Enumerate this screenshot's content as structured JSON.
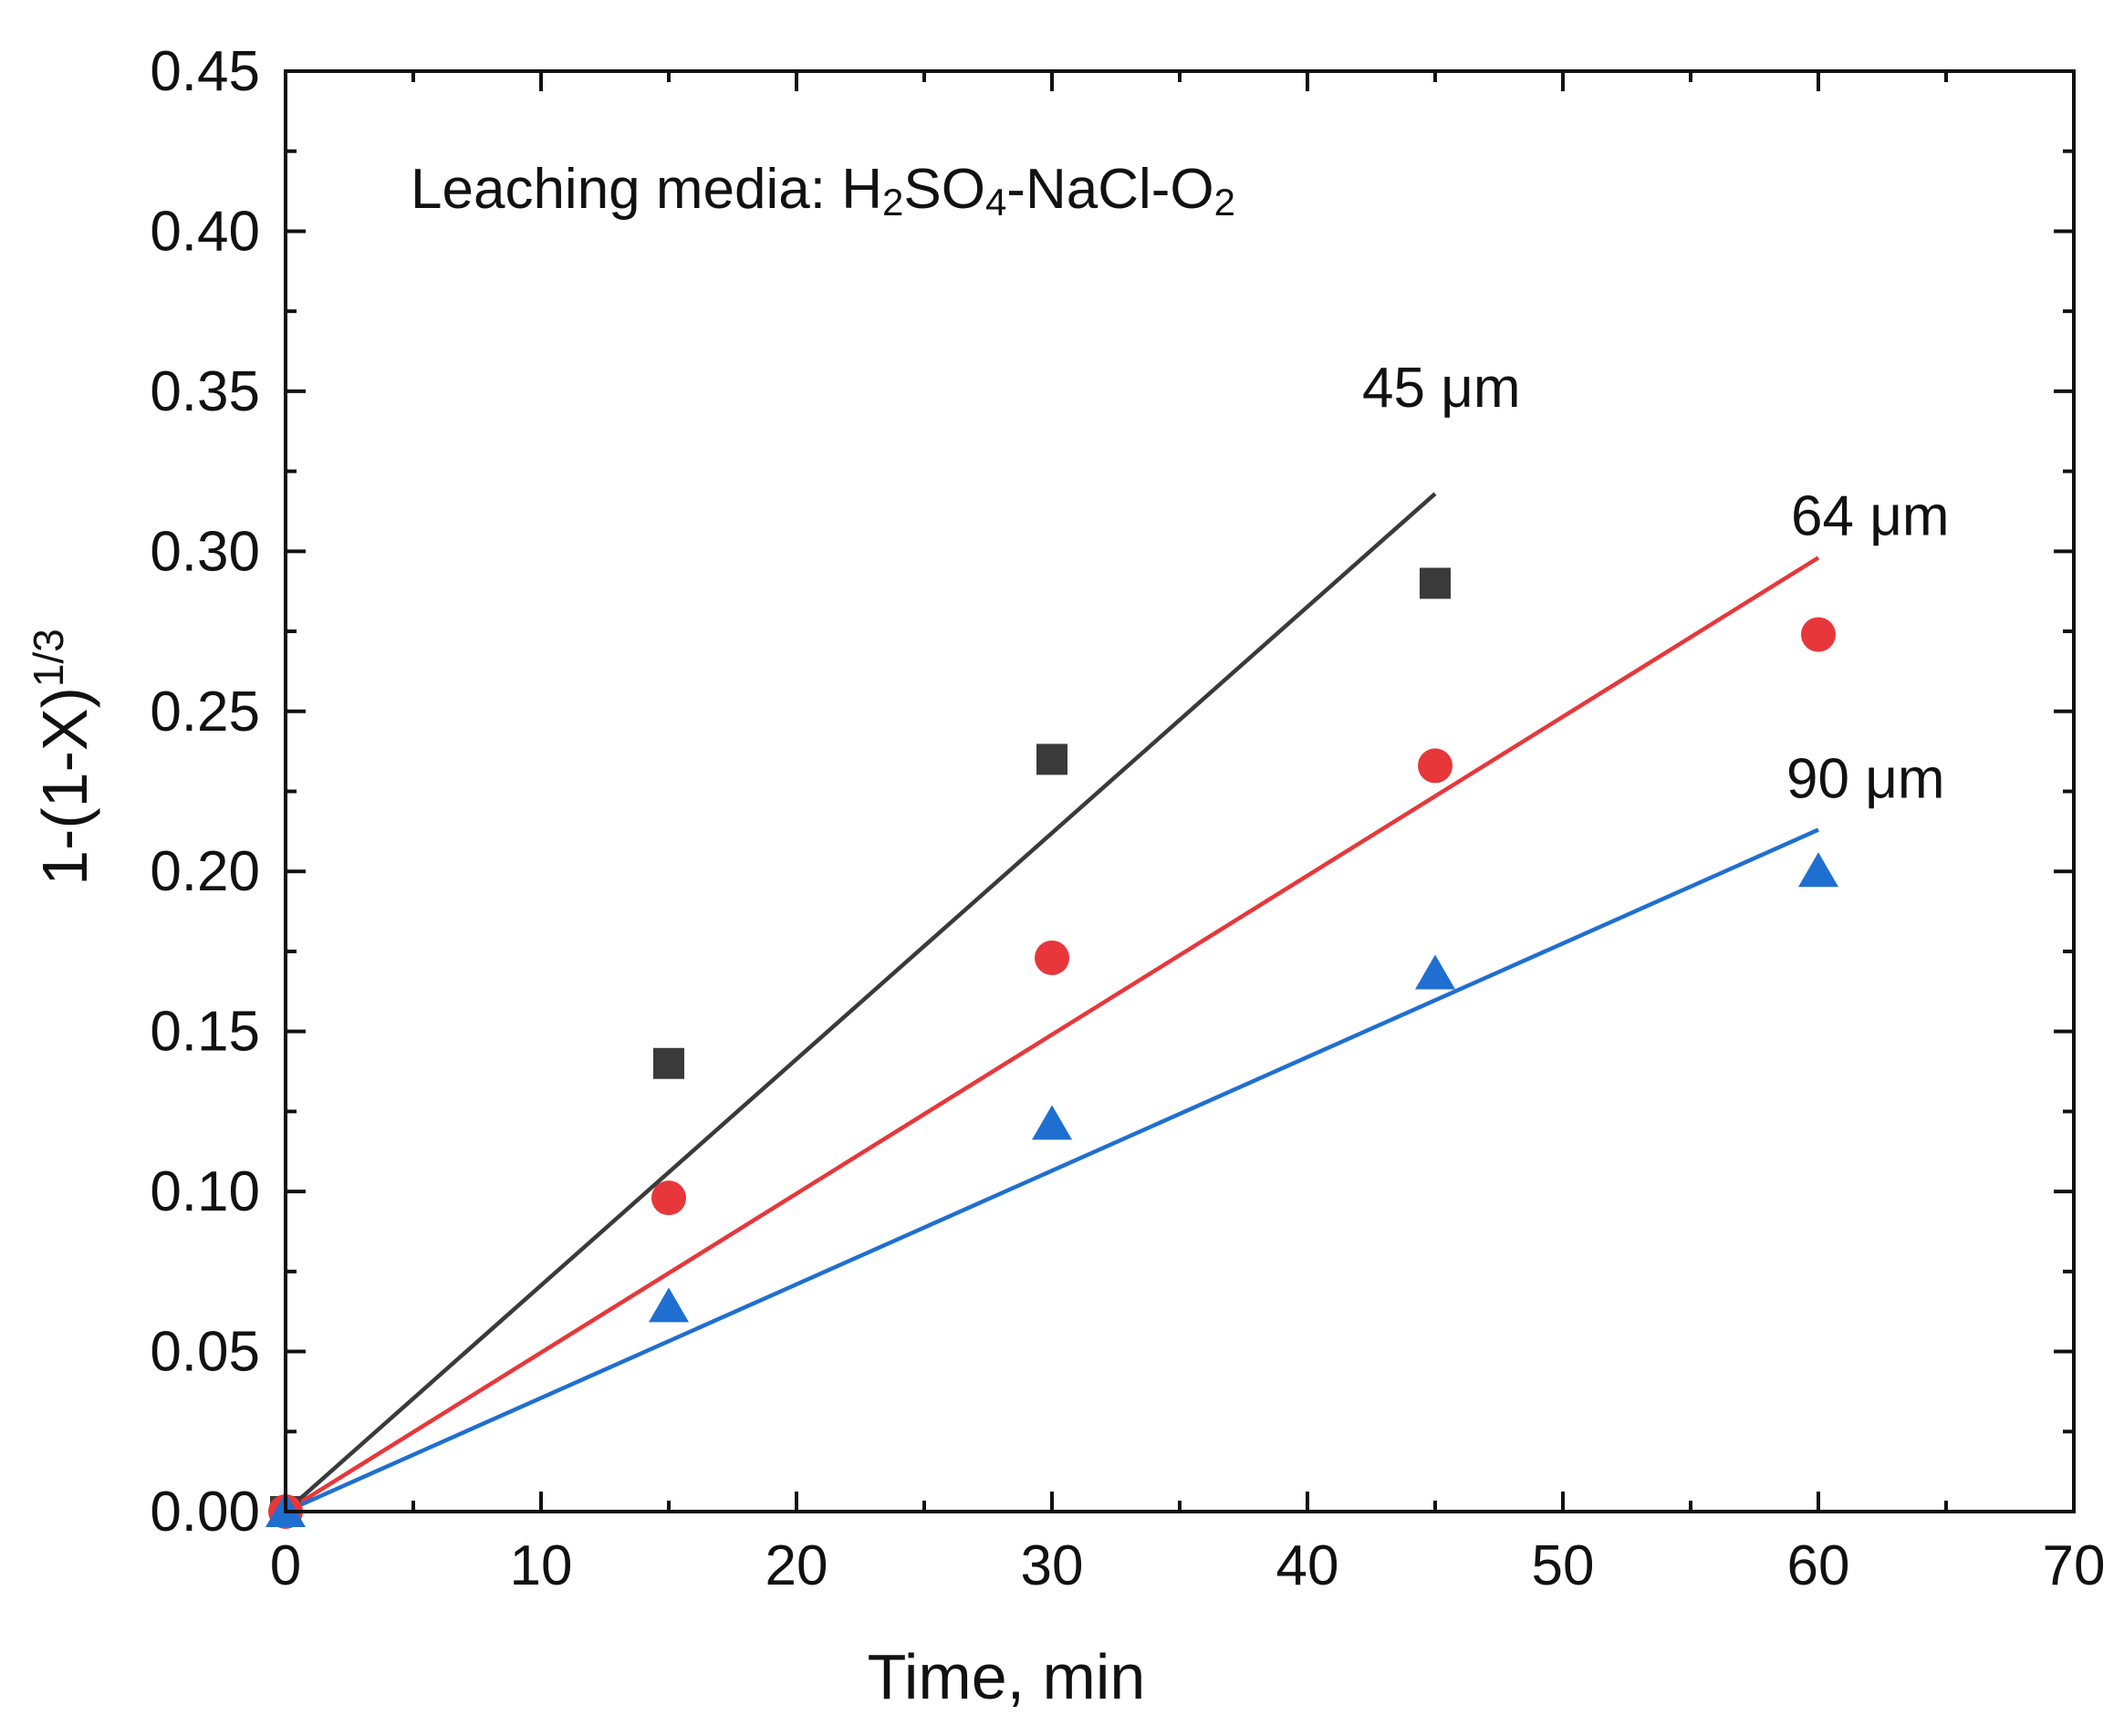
{
  "chart_data": {
    "type": "scatter",
    "title": "",
    "xlabel": "Time, min",
    "ylabel_parts": {
      "main": "1-(1-X)",
      "superscript": "1/3"
    },
    "xlim": [
      0,
      70
    ],
    "ylim": [
      0,
      0.45
    ],
    "xticks": [
      "0",
      "10",
      "20",
      "30",
      "40",
      "50",
      "60",
      "70"
    ],
    "yticks": [
      "0.00",
      "0.05",
      "0.10",
      "0.15",
      "0.20",
      "0.25",
      "0.30",
      "0.35",
      "0.40",
      "0.45"
    ],
    "grid": false,
    "annotation": {
      "prefix": "Leaching media: H",
      "sub1": "2",
      "mid1": "SO",
      "sub2": "4",
      "mid2": "-NaCl-O",
      "sub3": "2"
    },
    "series": [
      {
        "name": "45 µm",
        "label": "45 μm",
        "marker": "square",
        "color": "#3a3a3a",
        "x": [
          0,
          15,
          30,
          45
        ],
        "y": [
          0.0,
          0.14,
          0.235,
          0.29
        ],
        "fit": {
          "x": [
            0,
            45
          ],
          "y": [
            0,
            0.318
          ]
        }
      },
      {
        "name": "64 µm",
        "label": "64 μm",
        "marker": "circle",
        "color": "#e8373b",
        "x": [
          0,
          15,
          30,
          45,
          60
        ],
        "y": [
          0.0,
          0.098,
          0.173,
          0.233,
          0.274
        ],
        "fit": {
          "x": [
            0,
            60
          ],
          "y": [
            0,
            0.298
          ]
        }
      },
      {
        "name": "90 µm",
        "label": "90 μm",
        "marker": "triangle",
        "color": "#1f6fd1",
        "x": [
          0,
          15,
          30,
          45,
          60
        ],
        "y": [
          0.0,
          0.064,
          0.121,
          0.168,
          0.2
        ],
        "fit": {
          "x": [
            0,
            60
          ],
          "y": [
            0,
            0.213
          ]
        }
      }
    ]
  }
}
